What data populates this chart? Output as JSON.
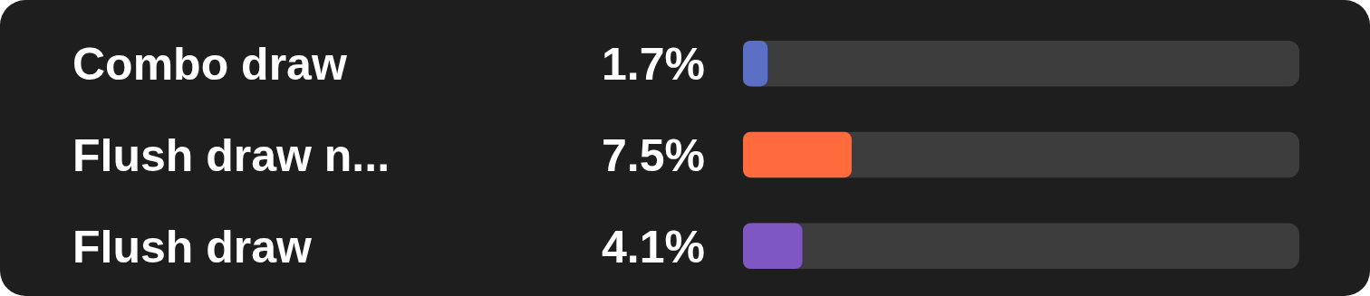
{
  "chart_data": {
    "type": "bar",
    "orientation": "horizontal",
    "categories": [
      "Combo draw",
      "Flush draw n...",
      "Flush draw"
    ],
    "values": [
      1.7,
      7.5,
      4.1
    ],
    "colors": [
      "#5b6fc4",
      "#ff6b3d",
      "#7e57c2"
    ],
    "value_labels": [
      "1.7%",
      "7.5%",
      "4.1%"
    ],
    "xlim": [
      0,
      38.4
    ],
    "tick_labels": "y"
  }
}
